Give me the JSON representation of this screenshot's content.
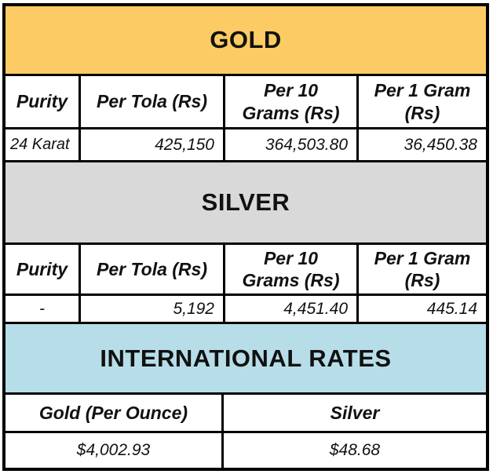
{
  "colors": {
    "gold_header_bg": "#FDCB63",
    "silver_header_bg": "#D9D9D9",
    "international_header_bg": "#B7DEE8",
    "border": "#000000",
    "text": "#111111"
  },
  "gold": {
    "title": "GOLD",
    "columns": [
      {
        "l1": "Purity"
      },
      {
        "l1": "Per Tola (Rs)"
      },
      {
        "l1": "Per 10",
        "l2": "Grams (Rs)"
      },
      {
        "l1": "Per 1 Gram",
        "l2": "(Rs)"
      }
    ],
    "row": [
      "24 Karat",
      "425,150",
      "364,503.80",
      "36,450.38"
    ]
  },
  "silver": {
    "title": "SILVER",
    "columns": [
      {
        "l1": "Purity"
      },
      {
        "l1": "Per Tola (Rs)"
      },
      {
        "l1": "Per 10",
        "l2": "Grams (Rs)"
      },
      {
        "l1": "Per 1 Gram",
        "l2": "(Rs)"
      }
    ],
    "row": [
      "-",
      "5,192",
      "4,451.40",
      "445.14"
    ]
  },
  "international": {
    "title": "INTERNATIONAL RATES",
    "columns": [
      {
        "l1": "Gold (Per Ounce)"
      },
      {
        "l1": "Silver"
      }
    ],
    "row": [
      "$4,002.93",
      "$48.68"
    ]
  }
}
